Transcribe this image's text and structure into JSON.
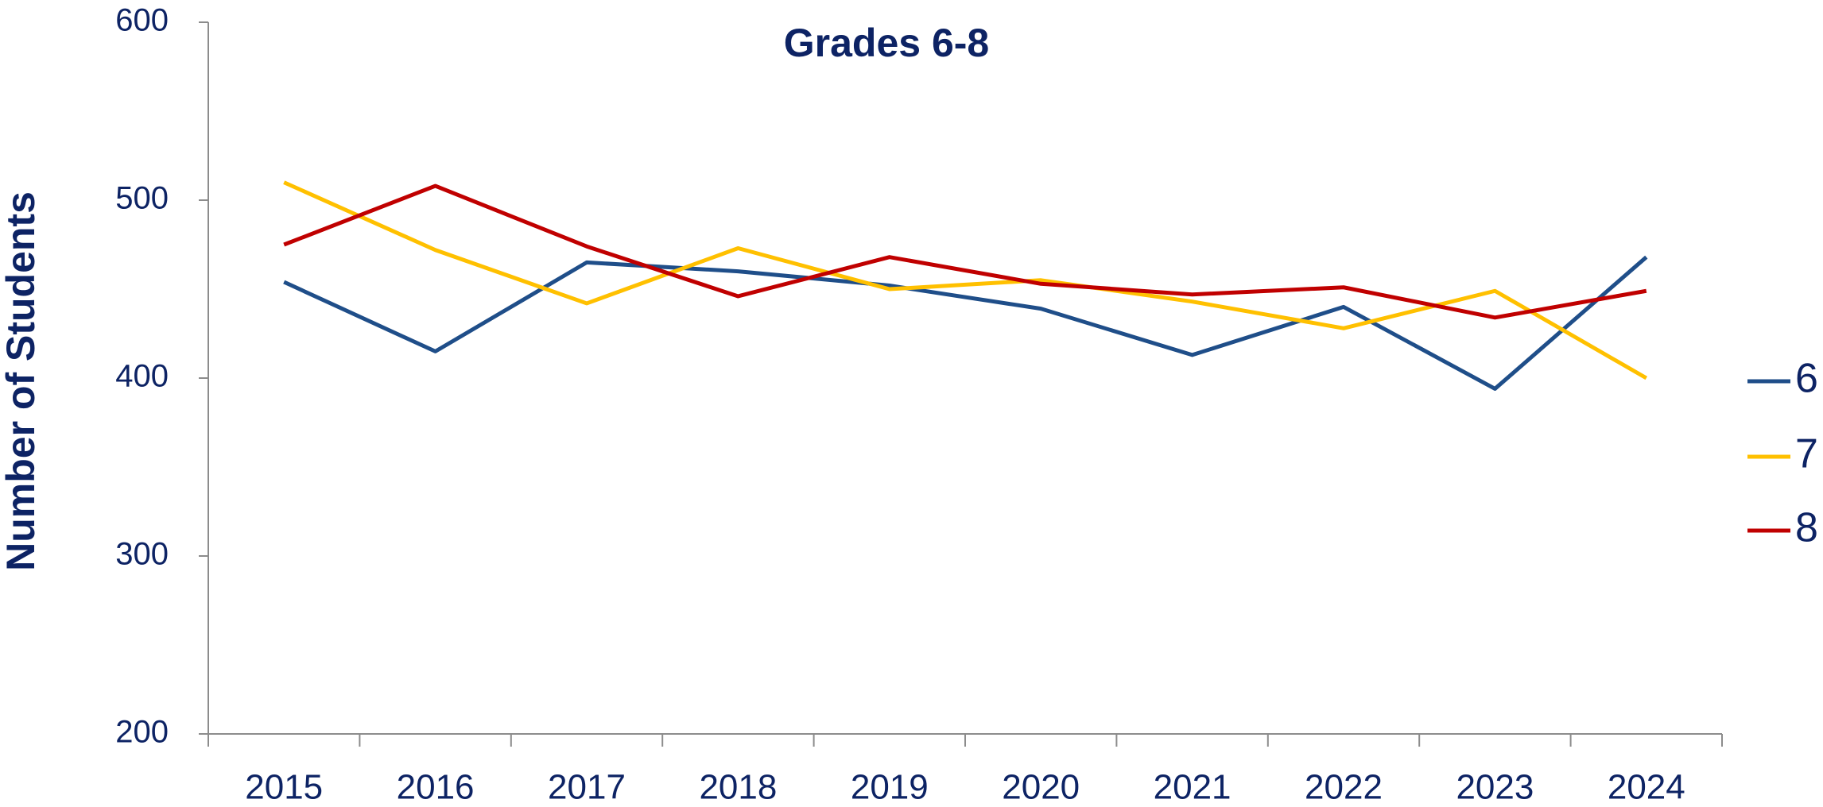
{
  "chart_data": {
    "type": "line",
    "title": "Grades 6-8",
    "y_label": "Number of Students",
    "categories": [
      "2015",
      "2016",
      "2017",
      "2018",
      "2019",
      "2020",
      "2021",
      "2022",
      "2023",
      "2024"
    ],
    "series": [
      {
        "name": "6",
        "color": "#1f4e89",
        "values": [
          454,
          415,
          465,
          460,
          452,
          439,
          413,
          440,
          394,
          468
        ]
      },
      {
        "name": "7",
        "color": "#ffc000",
        "values": [
          510,
          472,
          442,
          473,
          450,
          455,
          443,
          428,
          449,
          400
        ]
      },
      {
        "name": "8",
        "color": "#c00000",
        "values": [
          475,
          508,
          474,
          446,
          468,
          453,
          447,
          451,
          434,
          449
        ]
      }
    ],
    "ylim": [
      200,
      600
    ],
    "yticks": [
      200,
      300,
      400,
      500,
      600
    ],
    "grid": false,
    "legend": "right"
  }
}
